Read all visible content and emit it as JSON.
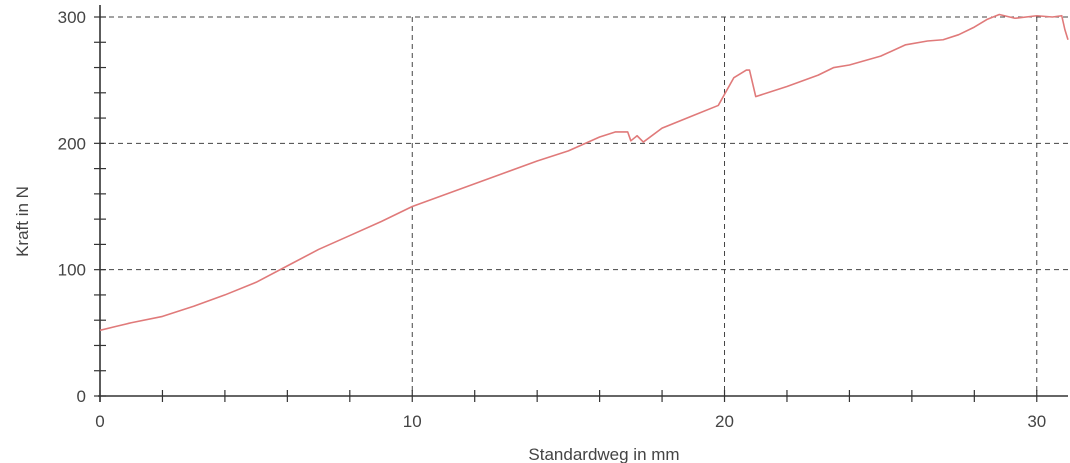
{
  "chart_data": {
    "type": "line",
    "title": "",
    "xlabel": "Standardweg in mm",
    "ylabel": "Kraft in N",
    "xlim": [
      0,
      31
    ],
    "ylim": [
      0,
      300
    ],
    "x_ticks": [
      0,
      10,
      20,
      30
    ],
    "x_tick_labels": [
      "0",
      "10",
      "20",
      "30"
    ],
    "y_ticks": [
      0,
      100,
      200,
      300
    ],
    "y_tick_labels": [
      "0",
      "100",
      "200",
      "300"
    ],
    "x_minor_step": 2,
    "y_minor_step": 20,
    "grid": true,
    "legend": "none",
    "series": [
      {
        "color": "#e07a7a",
        "points": [
          [
            0,
            52
          ],
          [
            0.5,
            55
          ],
          [
            1,
            58
          ],
          [
            2,
            63
          ],
          [
            3,
            71
          ],
          [
            4,
            80
          ],
          [
            5,
            90
          ],
          [
            6,
            103
          ],
          [
            7,
            116
          ],
          [
            8,
            127
          ],
          [
            9,
            138
          ],
          [
            10,
            150
          ],
          [
            11,
            159
          ],
          [
            12,
            168
          ],
          [
            13,
            177
          ],
          [
            14,
            186
          ],
          [
            15,
            194
          ],
          [
            16,
            205
          ],
          [
            16.5,
            209
          ],
          [
            16.9,
            209
          ],
          [
            17,
            202
          ],
          [
            17.2,
            206
          ],
          [
            17.4,
            201
          ],
          [
            18,
            212
          ],
          [
            19,
            222
          ],
          [
            19.8,
            230
          ],
          [
            20.3,
            252
          ],
          [
            20.7,
            258
          ],
          [
            20.8,
            258
          ],
          [
            21,
            237
          ],
          [
            22,
            245
          ],
          [
            23,
            254
          ],
          [
            23.5,
            260
          ],
          [
            24,
            262
          ],
          [
            25,
            269
          ],
          [
            25.8,
            278
          ],
          [
            26.5,
            281
          ],
          [
            27,
            282
          ],
          [
            27.5,
            286
          ],
          [
            28,
            292
          ],
          [
            28.4,
            298
          ],
          [
            28.8,
            302
          ],
          [
            29.3,
            299
          ],
          [
            30,
            301
          ],
          [
            30.5,
            300
          ],
          [
            30.8,
            301
          ],
          [
            30.9,
            290
          ],
          [
            31,
            282
          ]
        ]
      }
    ]
  }
}
